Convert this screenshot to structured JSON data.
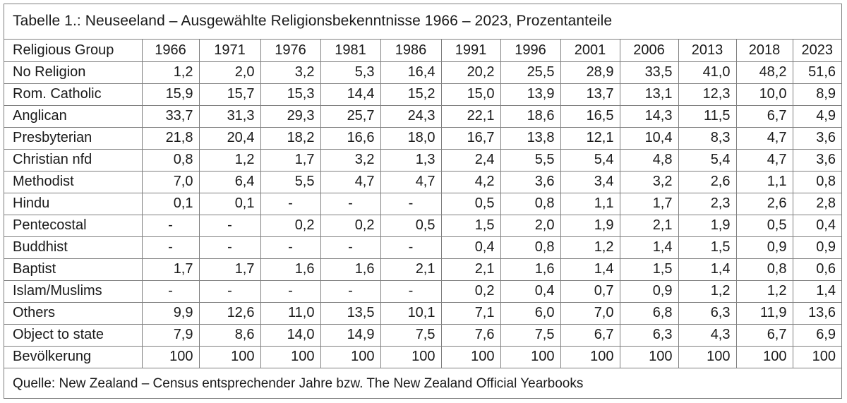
{
  "title": "Tabelle 1.: Neuseeland – Ausgewählte Religionsbekenntnisse 1966 – 2023, Prozentanteile",
  "table": {
    "header_label": "Religious Group",
    "years": [
      "1966",
      "1971",
      "1976",
      "1981",
      "1986",
      "1991",
      "1996",
      "2001",
      "2006",
      "2013",
      "2018",
      "2023"
    ],
    "rows": [
      {
        "label": "No Religion",
        "values": [
          "1,2",
          "2,0",
          "3,2",
          "5,3",
          "16,4",
          "20,2",
          "25,5",
          "28,9",
          "33,5",
          "41,0",
          "48,2",
          "51,6"
        ]
      },
      {
        "label": "Rom. Catholic",
        "values": [
          "15,9",
          "15,7",
          "15,3",
          "14,4",
          "15,2",
          "15,0",
          "13,9",
          "13,7",
          "13,1",
          "12,3",
          "10,0",
          "8,9"
        ]
      },
      {
        "label": "Anglican",
        "values": [
          "33,7",
          "31,3",
          "29,3",
          "25,7",
          "24,3",
          "22,1",
          "18,6",
          "16,5",
          "14,3",
          "11,5",
          "6,7",
          "4,9"
        ]
      },
      {
        "label": "Presbyterian",
        "values": [
          "21,8",
          "20,4",
          "18,2",
          "16,6",
          "18,0",
          "16,7",
          "13,8",
          "12,1",
          "10,4",
          "8,3",
          "4,7",
          "3,6"
        ]
      },
      {
        "label": "Christian nfd",
        "values": [
          "0,8",
          "1,2",
          "1,7",
          "3,2",
          "1,3",
          "2,4",
          "5,5",
          "5,4",
          "4,8",
          "5,4",
          "4,7",
          "3,6"
        ]
      },
      {
        "label": "Methodist",
        "values": [
          "7,0",
          "6,4",
          "5,5",
          "4,7",
          "4,7",
          "4,2",
          "3,6",
          "3,4",
          "3,2",
          "2,6",
          "1,1",
          "0,8"
        ]
      },
      {
        "label": "Hindu",
        "values": [
          "0,1",
          "0,1",
          "-",
          "-",
          "-",
          "0,5",
          "0,8",
          "1,1",
          "1,7",
          "2,3",
          "2,6",
          "2,8"
        ]
      },
      {
        "label": "Pentecostal",
        "values": [
          "-",
          "-",
          "0,2",
          "0,2",
          "0,5",
          "1,5",
          "2,0",
          "1,9",
          "2,1",
          "1,9",
          "0,5",
          "0,4"
        ]
      },
      {
        "label": "Buddhist",
        "values": [
          "-",
          "-",
          "-",
          "-",
          "-",
          "0,4",
          "0,8",
          "1,2",
          "1,4",
          "1,5",
          "0,9",
          "0,9"
        ]
      },
      {
        "label": "Baptist",
        "values": [
          "1,7",
          "1,7",
          "1,6",
          "1,6",
          "2,1",
          "2,1",
          "1,6",
          "1,4",
          "1,5",
          "1,4",
          "0,8",
          "0,6"
        ]
      },
      {
        "label": "Islam/Muslims",
        "values": [
          "-",
          "-",
          "-",
          "-",
          "-",
          "0,2",
          "0,4",
          "0,7",
          "0,9",
          "1,2",
          "1,2",
          "1,4"
        ]
      },
      {
        "label": "Others",
        "values": [
          "9,9",
          "12,6",
          "11,0",
          "13,5",
          "10,1",
          "7,1",
          "6,0",
          "7,0",
          "6,8",
          "6,3",
          "11,9",
          "13,6"
        ]
      },
      {
        "label": "Object to state",
        "values": [
          "7,9",
          "8,6",
          "14,0",
          "14,9",
          "7,5",
          "7,6",
          "7,5",
          "6,7",
          "6,3",
          "4,3",
          "6,7",
          "6,9"
        ]
      },
      {
        "label": "Bevölkerung",
        "values": [
          "100",
          "100",
          "100",
          "100",
          "100",
          "100",
          "100",
          "100",
          "100",
          "100",
          "100",
          "100"
        ]
      }
    ]
  },
  "source": "Quelle: New Zealand – Census entsprechender Jahre bzw. The New Zealand Official Yearbooks",
  "colors": {
    "border": "#7f7f7f",
    "text": "#1a1a1a",
    "background": "#ffffff"
  }
}
